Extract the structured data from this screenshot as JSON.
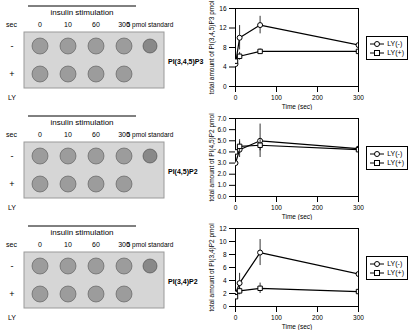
{
  "blots": {
    "header": "insulin stimulation",
    "time_label": "sec",
    "times": [
      "0",
      "10",
      "60",
      "300"
    ],
    "standard": "5 pmol standard",
    "rows": [
      "-",
      "+"
    ],
    "row_label": "LY",
    "panels": [
      "PI(3,4,5)P3",
      "PI(4,5)P2",
      "PI(3,4)P2"
    ]
  },
  "chart_data": [
    {
      "type": "line",
      "x_label": "Time (sec)",
      "y_label": "total amount of PI(3,4,5)P3 pmol",
      "x": [
        0,
        10,
        60,
        300
      ],
      "xlim": [
        0,
        300
      ],
      "xticks": [
        0,
        100,
        200,
        300
      ],
      "ylim": [
        0,
        16
      ],
      "yticks": [
        0,
        4,
        8,
        12,
        16
      ],
      "legend": "right",
      "series": [
        {
          "name": "LY(-)",
          "color": "#000000",
          "marker": "circle",
          "values": [
            4.6,
            10,
            12.6,
            8.5
          ],
          "errors": [
            0.8,
            2.5,
            1.8,
            1.5
          ]
        },
        {
          "name": "LY(+)",
          "color": "#000000",
          "marker": "square",
          "values": [
            5.2,
            6.2,
            7.2,
            7.2
          ],
          "errors": [
            0.6,
            0.8,
            0.5,
            1.0
          ]
        }
      ]
    },
    {
      "type": "line",
      "x_label": "Time (sec)",
      "y_label": "total amount of PI(4,5)P2 pmol",
      "x": [
        0,
        10,
        60,
        300
      ],
      "xlim": [
        0,
        300
      ],
      "xticks": [
        0,
        100,
        200,
        300
      ],
      "ylim": [
        0,
        7
      ],
      "yticks": [
        0,
        1,
        2,
        3,
        4,
        5,
        6,
        7
      ],
      "legend": "right",
      "series": [
        {
          "name": "LY(-)",
          "color": "#000000",
          "marker": "circle",
          "values": [
            3,
            4.2,
            5,
            4.3
          ],
          "errors": [
            0.9,
            0.7,
            1.5,
            0.3
          ]
        },
        {
          "name": "LY(+)",
          "color": "#000000",
          "marker": "square",
          "values": [
            4,
            4.5,
            4.6,
            4.2
          ],
          "errors": [
            1,
            0.6,
            0.5,
            0.2
          ]
        }
      ]
    },
    {
      "type": "line",
      "x_label": "Time (sec)",
      "y_label": "total amount of PI(3,4)P2 pmol",
      "x": [
        0,
        10,
        60,
        300
      ],
      "xlim": [
        0,
        300
      ],
      "xticks": [
        0,
        100,
        200,
        300
      ],
      "ylim": [
        0,
        12
      ],
      "yticks": [
        0,
        2,
        4,
        6,
        8,
        10,
        12
      ],
      "legend": "right",
      "series": [
        {
          "name": "LY(-)",
          "color": "#000000",
          "marker": "circle",
          "values": [
            2,
            3.6,
            8.3,
            5
          ],
          "errors": [
            0.8,
            1.5,
            2,
            1.5
          ]
        },
        {
          "name": "LY(+)",
          "color": "#000000",
          "marker": "square",
          "values": [
            1.5,
            2.4,
            2.8,
            2.3
          ],
          "errors": [
            0.5,
            0.6,
            0.8,
            1
          ]
        }
      ]
    }
  ]
}
